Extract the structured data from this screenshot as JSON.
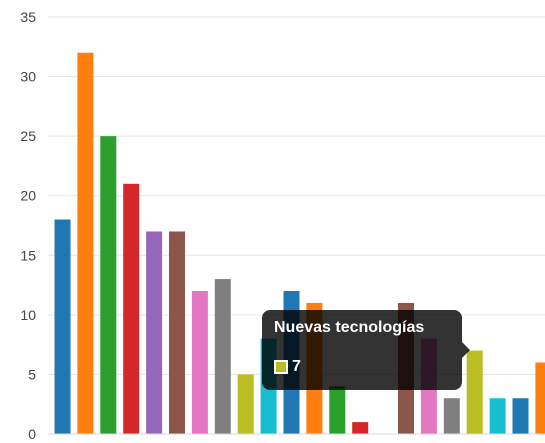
{
  "chart_data": {
    "type": "bar",
    "ylim": [
      0,
      35
    ],
    "yticks": [
      0,
      5,
      10,
      15,
      20,
      25,
      30,
      35
    ],
    "grid": true,
    "values": [
      18,
      32,
      25,
      21,
      17,
      17,
      12,
      13,
      5,
      8,
      12,
      11,
      4,
      1,
      0,
      11,
      8,
      3,
      7,
      3,
      3,
      6
    ],
    "colors": [
      "#1f77b4",
      "#ff7f0e",
      "#2ca02c",
      "#d62728",
      "#9467bd",
      "#8c564b",
      "#e377c2",
      "#7f7f7f",
      "#bcbd22",
      "#17becf",
      "#1f77b4",
      "#ff7f0e",
      "#2ca02c",
      "#d62728",
      "#9467bd",
      "#8c564b",
      "#e377c2",
      "#7f7f7f",
      "#bcbd22",
      "#17becf",
      "#1f77b4",
      "#ff7f0e"
    ]
  },
  "tooltip": {
    "title": "Nuevas tecnologías",
    "value": "7",
    "color": "#bcbd22"
  }
}
